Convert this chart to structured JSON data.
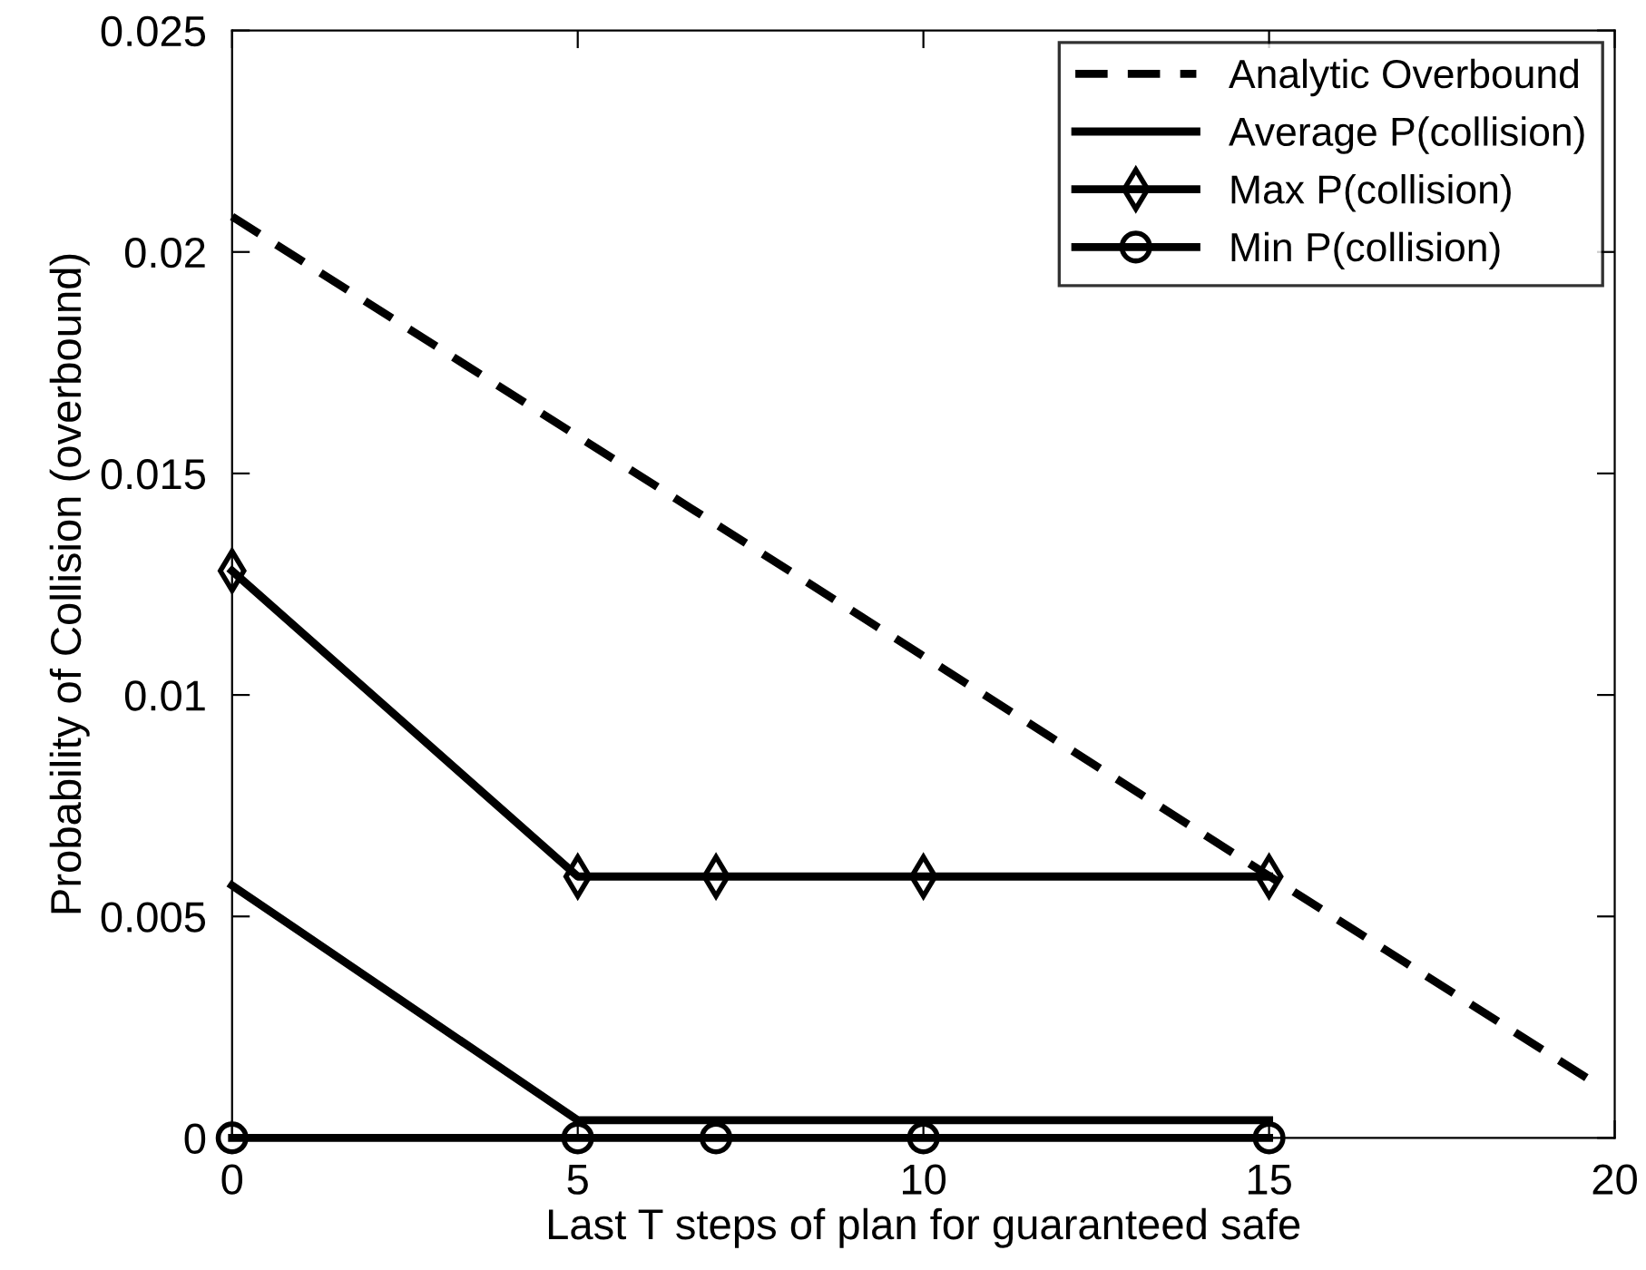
{
  "chart_data": {
    "type": "line",
    "xlabel": "Last T steps of plan for guaranteed safe",
    "ylabel": "Probability of Collision (overbound)",
    "xlim": [
      0,
      20
    ],
    "xticks": [
      0,
      5,
      10,
      15,
      20
    ],
    "ylim": [
      0,
      0.025
    ],
    "yticks": [
      0,
      0.005,
      0.01,
      0.015,
      0.02,
      0.025
    ],
    "grid": false,
    "legend": "top right",
    "series": [
      {
        "name": "Analytic Overbound",
        "color": "#000000",
        "x": [
          0,
          19.6
        ],
        "values": [
          0.0208,
          0.00135
        ],
        "line_style": "dashed",
        "marker": "none"
      },
      {
        "name": "Average P(collision)",
        "color": "#000000",
        "x": [
          0,
          5,
          7,
          10,
          15
        ],
        "values": [
          0.0057,
          0.0004,
          0.0004,
          0.0004,
          0.0004
        ],
        "line_style": "solid",
        "marker": "none"
      },
      {
        "name": "Max P(collision)",
        "color": "#000000",
        "x": [
          0,
          5,
          7,
          10,
          15
        ],
        "values": [
          0.0128,
          0.0059,
          0.0059,
          0.0059,
          0.0059
        ],
        "line_style": "solid",
        "marker": "diamond"
      },
      {
        "name": "Min P(collision)",
        "color": "#000000",
        "x": [
          0,
          5,
          7,
          10,
          15
        ],
        "values": [
          0,
          0,
          0,
          0,
          0
        ],
        "line_style": "solid",
        "marker": "circle"
      }
    ]
  }
}
